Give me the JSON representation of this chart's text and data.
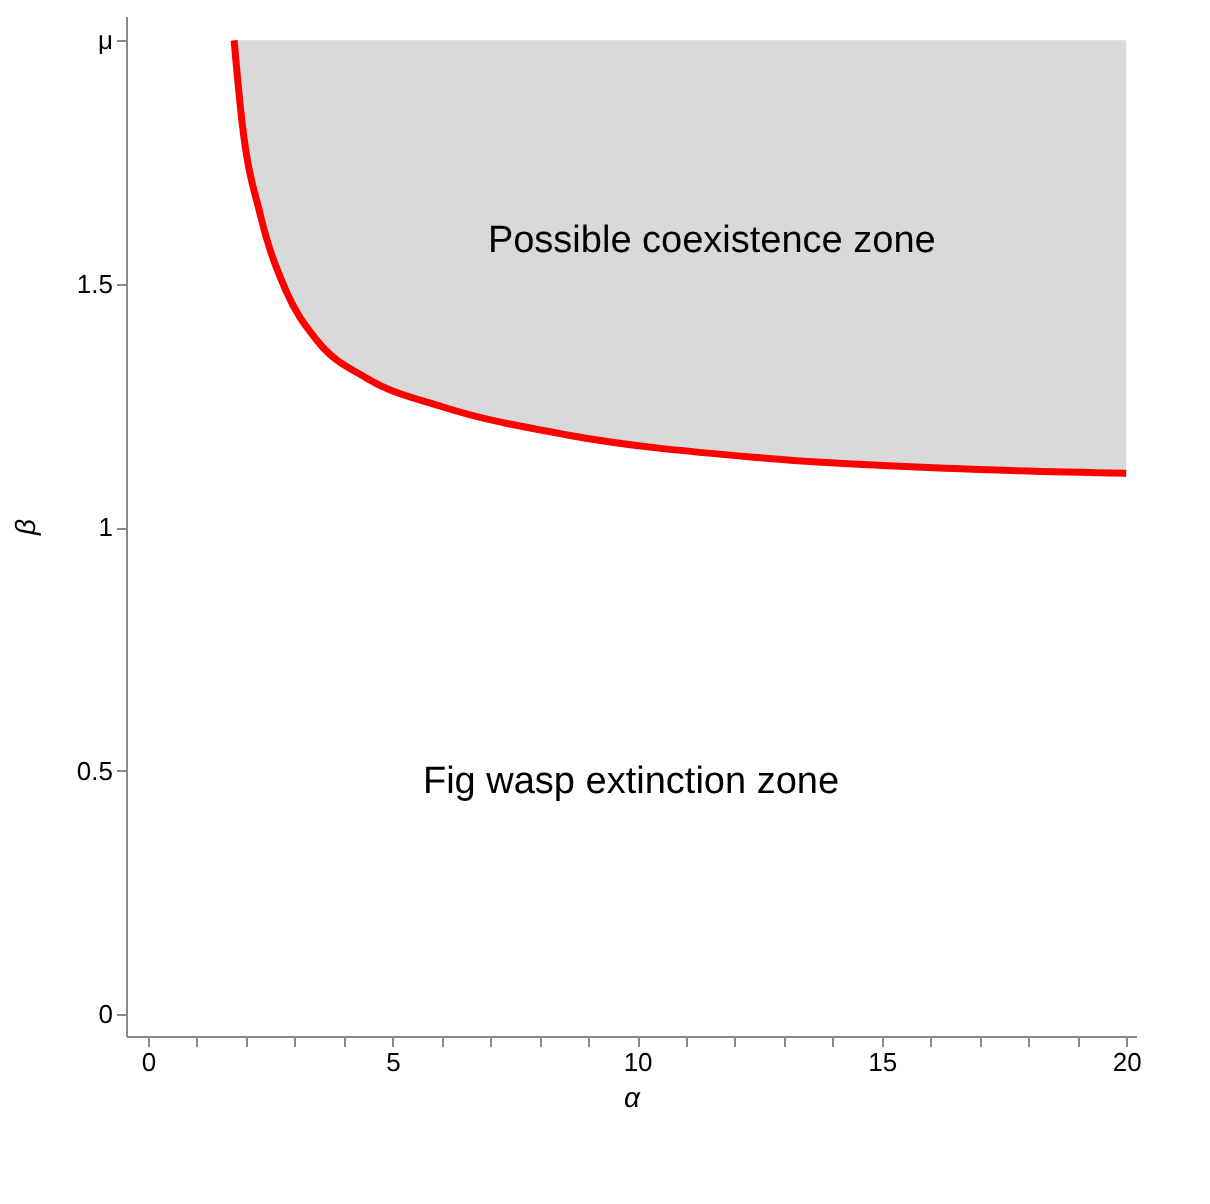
{
  "chart_data": {
    "type": "line",
    "xlabel": "α",
    "ylabel": "β",
    "xlim": [
      -0.45,
      20.2
    ],
    "ylim": [
      -0.045,
      2.05
    ],
    "xticks": [
      0,
      {
        "value": 1,
        "label": null
      },
      {
        "value": 2,
        "label": null
      },
      {
        "value": 3,
        "label": null
      },
      {
        "value": 4,
        "label": null
      },
      5,
      {
        "value": 6,
        "label": null
      },
      {
        "value": 7,
        "label": null
      },
      {
        "value": 8,
        "label": null
      },
      {
        "value": 9,
        "label": null
      },
      10,
      {
        "value": 11,
        "label": null
      },
      {
        "value": 12,
        "label": null
      },
      {
        "value": 13,
        "label": null
      },
      {
        "value": 14,
        "label": null
      },
      15,
      {
        "value": 16,
        "label": null
      },
      {
        "value": 17,
        "label": null
      },
      {
        "value": 18,
        "label": null
      },
      {
        "value": 19,
        "label": null
      },
      20
    ],
    "yticks": [
      0,
      0.5,
      1,
      1.5,
      {
        "value": 2,
        "label": "μ"
      }
    ],
    "series": [
      {
        "color": "#ff0000",
        "x": [
          1.76,
          1.92,
          2.3,
          2.82,
          3.46,
          4.49,
          6.03,
          8.6,
          12.47,
          16.3,
          20
        ],
        "values": [
          2,
          1.834,
          1.64,
          1.486,
          1.383,
          1.305,
          1.247,
          1.189,
          1.143,
          1.121,
          1.111
        ],
        "lower": [
          2,
          1.834,
          1.64,
          1.486,
          1.383,
          1.305,
          1.247,
          1.189,
          1.143,
          1.121,
          1.111
        ],
        "upper": [
          2,
          2,
          2,
          2,
          2,
          2,
          2,
          2,
          2,
          2,
          2
        ]
      }
    ],
    "annotations": [
      "Possible coexistence zone",
      "Fig wasp extinction zone"
    ],
    "grid": false,
    "marker": "none",
    "line_style": "solid"
  }
}
